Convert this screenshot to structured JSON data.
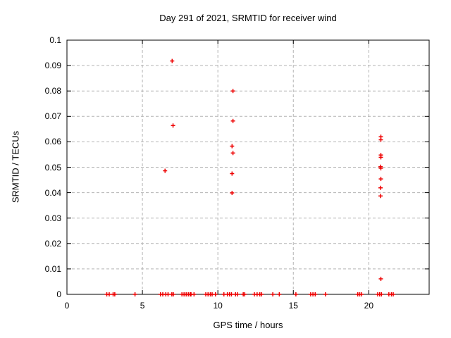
{
  "chart_data": {
    "type": "scatter",
    "title": "Day 291 of 2021, SRMTID for receiver wind",
    "grid": true,
    "legend": "none",
    "marker": "plus",
    "marker_color": "#ee0000",
    "grid_color": "#b3b3b3",
    "axis_color": "#000000",
    "background_color": "#ffffff",
    "x_axis": {
      "label": "GPS time / hours",
      "min": 0,
      "max": 24,
      "ticks": [
        {
          "v": 0,
          "t": "0"
        },
        {
          "v": 5,
          "t": "5"
        },
        {
          "v": 10,
          "t": "10"
        },
        {
          "v": 15,
          "t": "15"
        },
        {
          "v": 20,
          "t": "20"
        }
      ]
    },
    "y_axis": {
      "label": "SRMTID / TECUs",
      "min": 0,
      "max": 0.1,
      "ticks": [
        {
          "v": 0,
          "t": "0"
        },
        {
          "v": 0.01,
          "t": "0.01"
        },
        {
          "v": 0.02,
          "t": "0.02"
        },
        {
          "v": 0.03,
          "t": "0.03"
        },
        {
          "v": 0.04,
          "t": "0.04"
        },
        {
          "v": 0.05,
          "t": "0.05"
        },
        {
          "v": 0.06,
          "t": "0.06"
        },
        {
          "v": 0.07,
          "t": "0.07"
        },
        {
          "v": 0.08,
          "t": "0.08"
        },
        {
          "v": 0.09,
          "t": "0.09"
        },
        {
          "v": 0.1,
          "t": "0.1"
        }
      ]
    },
    "series": [
      {
        "points": [
          [
            6.5,
            0.0486
          ],
          [
            6.97,
            0.0918
          ],
          [
            7.03,
            0.0664
          ],
          [
            11.0,
            0.08
          ],
          [
            11.0,
            0.0682
          ],
          [
            10.94,
            0.0583
          ],
          [
            11.0,
            0.0556
          ],
          [
            10.94,
            0.0475
          ],
          [
            10.94,
            0.0399
          ],
          [
            20.8,
            0.062
          ],
          [
            20.8,
            0.0608
          ],
          [
            20.8,
            0.0548
          ],
          [
            20.8,
            0.0539
          ],
          [
            20.78,
            0.0502
          ],
          [
            20.8,
            0.0496
          ],
          [
            20.8,
            0.0454
          ],
          [
            20.78,
            0.0419
          ],
          [
            20.78,
            0.0387
          ],
          [
            20.8,
            0.0061
          ],
          [
            2.64,
            0
          ],
          [
            2.8,
            0
          ],
          [
            3.06,
            0
          ],
          [
            3.17,
            0
          ],
          [
            4.51,
            0
          ],
          [
            6.2,
            0
          ],
          [
            6.35,
            0
          ],
          [
            6.55,
            0
          ],
          [
            6.7,
            0
          ],
          [
            6.95,
            0
          ],
          [
            7.05,
            0
          ],
          [
            7.62,
            0
          ],
          [
            7.76,
            0
          ],
          [
            7.9,
            0
          ],
          [
            8.04,
            0
          ],
          [
            8.16,
            0
          ],
          [
            8.22,
            0
          ],
          [
            8.42,
            0
          ],
          [
            9.2,
            0
          ],
          [
            9.35,
            0
          ],
          [
            9.5,
            0
          ],
          [
            9.62,
            0
          ],
          [
            9.84,
            0
          ],
          [
            10.4,
            0
          ],
          [
            10.63,
            0
          ],
          [
            10.77,
            0
          ],
          [
            10.9,
            0
          ],
          [
            11.17,
            0
          ],
          [
            11.29,
            0
          ],
          [
            11.68,
            0
          ],
          [
            11.78,
            0
          ],
          [
            12.42,
            0
          ],
          [
            12.6,
            0
          ],
          [
            12.78,
            0
          ],
          [
            12.9,
            0
          ],
          [
            13.64,
            0
          ],
          [
            14.07,
            0
          ],
          [
            15.17,
            0
          ],
          [
            16.15,
            0
          ],
          [
            16.3,
            0
          ],
          [
            16.45,
            0
          ],
          [
            17.13,
            0
          ],
          [
            19.27,
            0
          ],
          [
            19.4,
            0
          ],
          [
            19.52,
            0
          ],
          [
            20.59,
            0
          ],
          [
            20.72,
            0
          ],
          [
            20.84,
            0
          ],
          [
            21.33,
            0
          ],
          [
            21.5,
            0
          ],
          [
            21.62,
            0
          ]
        ]
      }
    ]
  }
}
